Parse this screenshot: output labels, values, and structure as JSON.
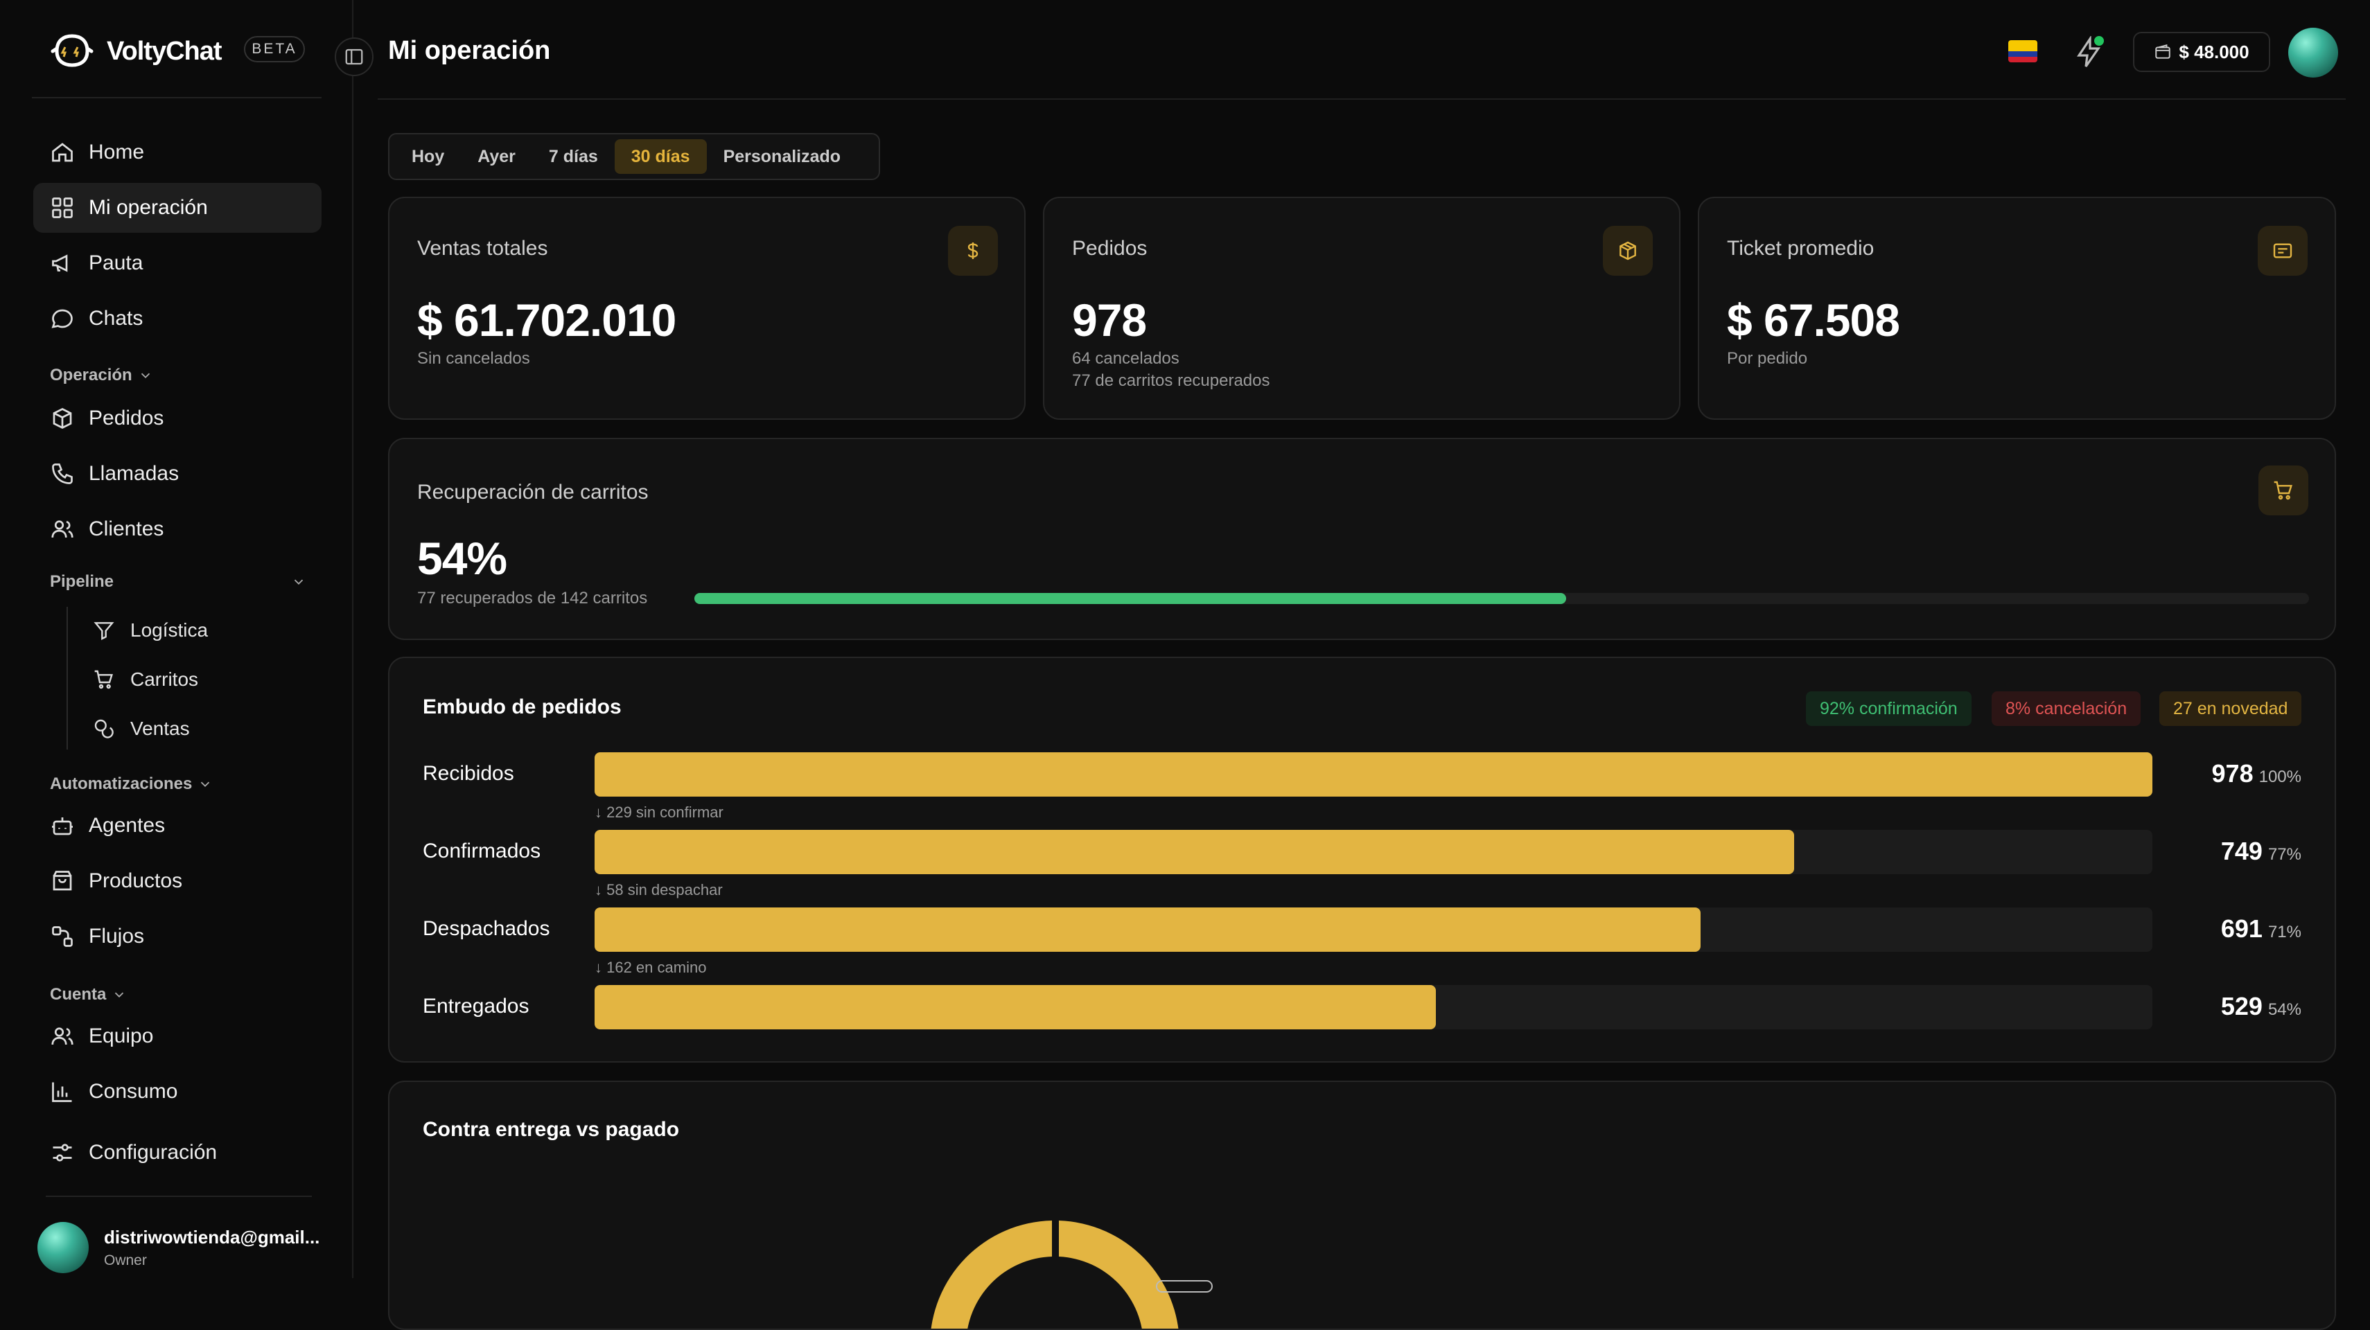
{
  "brand": {
    "name": "VoltyChat",
    "badge": "BETA"
  },
  "nav": {
    "main": [
      {
        "label": "Home",
        "icon": "home-icon",
        "active": false
      },
      {
        "label": "Mi operación",
        "icon": "grid-icon",
        "active": true
      },
      {
        "label": "Pauta",
        "icon": "megaphone-icon",
        "active": false
      },
      {
        "label": "Chats",
        "icon": "chat-icon",
        "active": false
      }
    ],
    "operacion_heading": "Operación",
    "operacion": [
      {
        "label": "Pedidos",
        "icon": "box-icon"
      },
      {
        "label": "Llamadas",
        "icon": "phone-icon"
      },
      {
        "label": "Clientes",
        "icon": "users-icon"
      }
    ],
    "pipeline_heading": "Pipeline",
    "pipeline": [
      {
        "label": "Logística",
        "icon": "filter-icon"
      },
      {
        "label": "Carritos",
        "icon": "cart-icon"
      },
      {
        "label": "Ventas",
        "icon": "coins-icon"
      }
    ],
    "automatizaciones_heading": "Automatizaciones",
    "automatizaciones": [
      {
        "label": "Agentes",
        "icon": "bot-icon"
      },
      {
        "label": "Productos",
        "icon": "bag-icon"
      },
      {
        "label": "Flujos",
        "icon": "workflow-icon"
      }
    ],
    "cuenta_heading": "Cuenta",
    "cuenta": [
      {
        "label": "Equipo",
        "icon": "team-icon"
      },
      {
        "label": "Consumo",
        "icon": "bar-chart-icon"
      },
      {
        "label": "Configuración",
        "icon": "sliders-icon"
      }
    ]
  },
  "user": {
    "email": "distriwowtienda@gmail...",
    "role": "Owner"
  },
  "header": {
    "title": "Mi operación",
    "balance": "$ 48.000"
  },
  "range": {
    "tabs": [
      "Hoy",
      "Ayer",
      "7 días",
      "30 días",
      "Personalizado"
    ],
    "active_index": 3
  },
  "stats": {
    "ventas": {
      "title": "Ventas totales",
      "value": "$ 61.702.010",
      "sub": "Sin cancelados",
      "icon": "dollar-icon"
    },
    "pedidos": {
      "title": "Pedidos",
      "value": "978",
      "sub1": "64 cancelados",
      "sub2": "77 de carritos recuperados",
      "icon": "box-icon"
    },
    "ticket": {
      "title": "Ticket promedio",
      "value": "$ 67.508",
      "sub": "Por pedido",
      "icon": "receipt-icon"
    }
  },
  "recovery": {
    "title": "Recuperación de carritos",
    "value": "54%",
    "sub": "77 recuperados de 142 carritos",
    "progress": 0.54,
    "icon": "cart-icon"
  },
  "funnel": {
    "title": "Embudo de pedidos",
    "badges": {
      "confirmacion": "92% confirmación",
      "cancelacion": "8% cancelación",
      "novedad": "27 en novedad"
    },
    "rows": [
      {
        "label": "Recibidos",
        "value": "978",
        "pct": "100%",
        "ratio": 1.0
      },
      {
        "label": "Confirmados",
        "value": "749",
        "pct": "77%",
        "ratio": 0.77
      },
      {
        "label": "Despachados",
        "value": "691",
        "pct": "71%",
        "ratio": 0.71
      },
      {
        "label": "Entregados",
        "value": "529",
        "pct": "54%",
        "ratio": 0.54
      }
    ],
    "notes": [
      "↓ 229 sin confirmar",
      "↓ 58 sin despachar",
      "↓ 162 en camino"
    ]
  },
  "payment": {
    "title": "Contra entrega vs pagado"
  },
  "colors": {
    "accent": "#e3b542",
    "green": "#3fbf73",
    "red": "#e05454",
    "bg": "#0b0b0b",
    "card": "#121212"
  }
}
